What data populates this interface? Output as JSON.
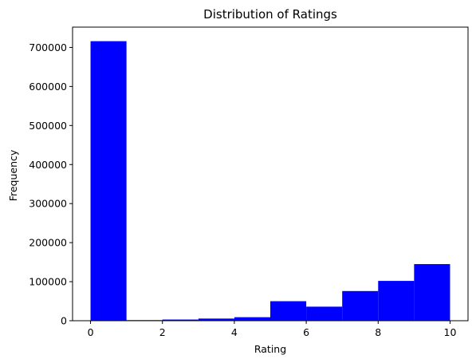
{
  "chart_data": {
    "type": "bar",
    "title": "Distribution of Ratings",
    "xlabel": "Rating",
    "ylabel": "Frequency",
    "bin_edges": [
      0,
      1,
      2,
      3,
      4,
      5,
      6,
      7,
      8,
      9,
      10
    ],
    "values": [
      716000,
      1500,
      3000,
      5500,
      9000,
      50000,
      36000,
      76000,
      102000,
      145000
    ],
    "xlim": [
      -0.5,
      10.5
    ],
    "ylim": [
      0,
      752000
    ],
    "x_ticks": [
      "0",
      "2",
      "4",
      "6",
      "8",
      "10"
    ],
    "y_ticks": [
      "0",
      "100000",
      "200000",
      "300000",
      "400000",
      "500000",
      "600000",
      "700000"
    ],
    "grid": false,
    "bar_color": "#0000ff"
  }
}
